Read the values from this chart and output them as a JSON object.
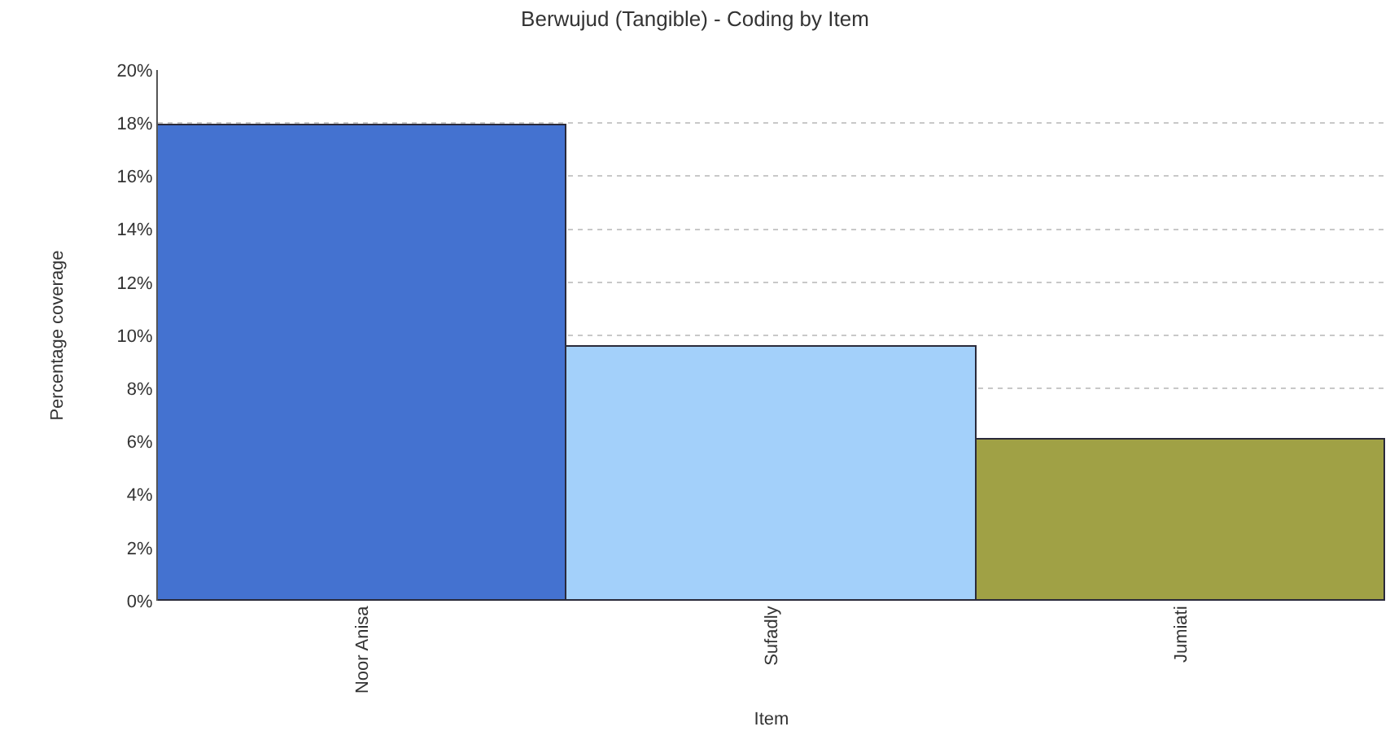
{
  "chart_data": {
    "type": "bar",
    "title": "Berwujud (Tangible) - Coding by Item",
    "xlabel": "Item",
    "ylabel": "Percentage coverage",
    "categories": [
      "Noor Anisa",
      "Sufadly",
      "Jumiati"
    ],
    "values": [
      17.9,
      9.6,
      6.1
    ],
    "colors": [
      "#4472d0",
      "#a3d0fa",
      "#a0a145"
    ],
    "ylim": [
      0,
      20
    ],
    "yticks": [
      {
        "value": 0,
        "label": "0%"
      },
      {
        "value": 2,
        "label": "2%"
      },
      {
        "value": 4,
        "label": "4%"
      },
      {
        "value": 6,
        "label": "6%"
      },
      {
        "value": 8,
        "label": "8%"
      },
      {
        "value": 10,
        "label": "10%"
      },
      {
        "value": 12,
        "label": "12%"
      },
      {
        "value": 14,
        "label": "14%"
      },
      {
        "value": 16,
        "label": "16%"
      },
      {
        "value": 18,
        "label": "18%"
      },
      {
        "value": 20,
        "label": "20%"
      }
    ],
    "grid": "y"
  }
}
